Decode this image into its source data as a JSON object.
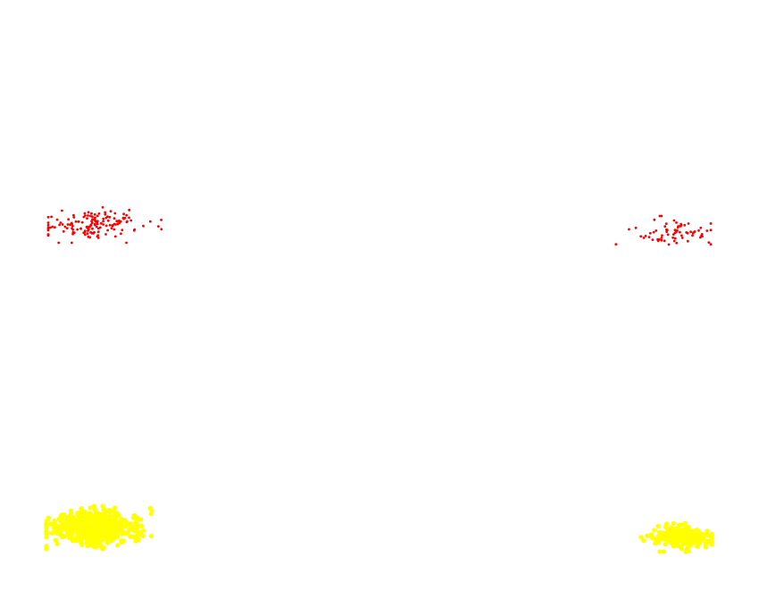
{
  "chart_data": {
    "type": "scatter",
    "title": "",
    "xlabel": "",
    "ylabel": "",
    "grid": false,
    "axes_visible": false,
    "xlim": [
      0,
      850
    ],
    "ylim": [
      0,
      680
    ],
    "series": [
      {
        "color": "#ff0000",
        "marker": "dot",
        "clusters": [
          {
            "x_range": [
              54,
              188
            ],
            "y_range": [
              229,
              272
            ],
            "count": 150
          },
          {
            "x_range": [
              689,
              796
            ],
            "y_range": [
              242,
              279
            ],
            "count": 70
          }
        ]
      },
      {
        "color": "#ffff00",
        "marker": "dense-blob",
        "clusters": [
          {
            "x_range": [
              52,
              176
            ],
            "y_range": [
              567,
              615
            ],
            "count": 550
          },
          {
            "x_range": [
              718,
              797
            ],
            "y_range": [
              586,
              618
            ],
            "count": 250
          }
        ]
      }
    ]
  }
}
